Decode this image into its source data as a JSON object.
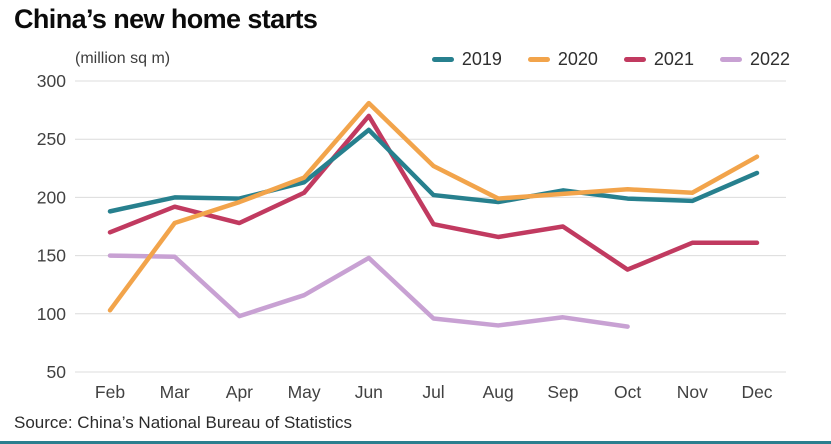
{
  "title": "China’s new home starts",
  "units_label": "(million sq m)",
  "source": "Source: China’s National Bureau of Statistics",
  "colors": {
    "background": "#ffffff",
    "grid": "#dcdcdc",
    "axis_text": "#414141",
    "title_text": "#0b0b0b",
    "source_text": "#2b2b2b",
    "accent_bar": "#2a7e8e"
  },
  "chart_data": {
    "type": "line",
    "title": "China’s new home starts",
    "ylabel": "(million sq m)",
    "categories": [
      "Feb",
      "Mar",
      "Apr",
      "May",
      "Jun",
      "Jul",
      "Aug",
      "Sep",
      "Oct",
      "Nov",
      "Dec"
    ],
    "series": [
      {
        "name": "2019",
        "color": "#27808E",
        "values": [
          188,
          200,
          199,
          213,
          258,
          202,
          196,
          206,
          199,
          197,
          221
        ]
      },
      {
        "name": "2020",
        "color": "#F2A44B",
        "values": [
          103,
          178,
          196,
          217,
          281,
          227,
          199,
          203,
          207,
          204,
          235
        ]
      },
      {
        "name": "2021",
        "color": "#C13A60",
        "values": [
          170,
          192,
          178,
          204,
          270,
          177,
          166,
          175,
          138,
          161,
          161
        ]
      },
      {
        "name": "2022",
        "color": "#C8A1D3",
        "values": [
          150,
          149,
          98,
          116,
          148,
          96,
          90,
          97,
          89
        ]
      }
    ],
    "yticks": [
      300,
      250,
      200,
      150,
      100,
      50
    ],
    "ylim": [
      50,
      300
    ],
    "grid": true,
    "legend_position": "top-right",
    "draw_order": [
      "2022",
      "2021",
      "2019",
      "2020"
    ]
  }
}
